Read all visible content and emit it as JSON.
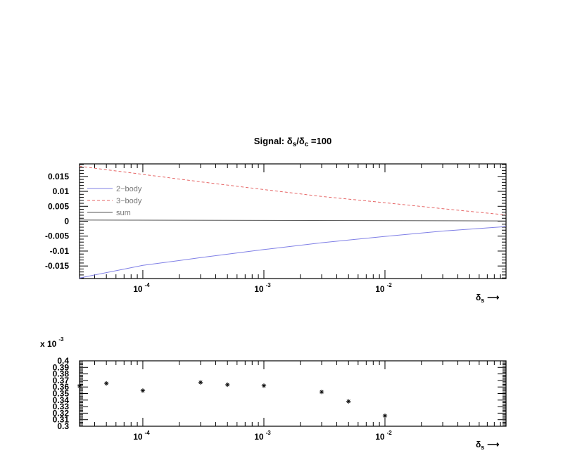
{
  "title": {
    "prefix": "Signal: ",
    "sym": "δ",
    "sub1": "s",
    "slash": "/",
    "sub2": "c",
    "suffix": " =100"
  },
  "xaxis_label": {
    "sym": "δ",
    "sub": "s",
    "arrow": "⟶"
  },
  "x_tick_labels": [
    {
      "base": "10",
      "exp": "-4"
    },
    {
      "base": "10",
      "exp": "-3"
    },
    {
      "base": "10",
      "exp": "-2"
    }
  ],
  "top_y_ticks": [
    "0.015",
    "0.01",
    "0.005",
    "0",
    "-0.005",
    "-0.01",
    "-0.015"
  ],
  "bottom_y_ticks": [
    "0.4",
    "0.39",
    "0.38",
    "0.37",
    "0.36",
    "0.35",
    "0.34",
    "0.33",
    "0.32",
    "0.31",
    "0.3"
  ],
  "bottom_multiplier": {
    "base": "x 10",
    "exp": "-3"
  },
  "colors": {
    "two_body": "#7f7fe6",
    "three_body": "#e66666",
    "sum": "#555555",
    "markers": "#000000"
  },
  "chart_data": [
    {
      "type": "line",
      "title": "Signal: δs/δc =100",
      "xlabel": "δs",
      "x_scale": "log",
      "xlim": [
        3e-05,
        0.1
      ],
      "ylim": [
        -0.0192,
        0.0192
      ],
      "legend": "top-left",
      "series": [
        {
          "name": "2−body",
          "style": "solid",
          "x": [
            3e-05,
            0.0001,
            0.0003,
            0.001,
            0.003,
            0.01,
            0.03,
            0.1
          ],
          "y": [
            -0.019,
            -0.0148,
            -0.0122,
            -0.0095,
            -0.0072,
            -0.0051,
            -0.0033,
            -0.0018
          ]
        },
        {
          "name": "3−body",
          "style": "dashed",
          "x": [
            3e-05,
            0.0001,
            0.0003,
            0.001,
            0.003,
            0.01,
            0.03,
            0.1
          ],
          "y": [
            0.0184,
            0.0157,
            0.0132,
            0.0106,
            0.0083,
            0.0062,
            0.0042,
            0.0021
          ]
        },
        {
          "name": "sum",
          "style": "solid",
          "x": [
            3e-05,
            0.1
          ],
          "y": [
            0.00037,
            0.0001
          ]
        }
      ]
    },
    {
      "type": "scatter",
      "xlabel": "δs",
      "x_scale": "log",
      "xlim": [
        3e-05,
        0.1
      ],
      "ylim": [
        0.3,
        0.4
      ],
      "y_multiplier": "x 10^-3",
      "series": [
        {
          "marker": "*",
          "x": [
            3e-05,
            5e-05,
            0.0001,
            0.0003,
            0.0005,
            0.001,
            0.003,
            0.005,
            0.01
          ],
          "y": [
            0.3615,
            0.3655,
            0.3545,
            0.367,
            0.3635,
            0.362,
            0.3525,
            0.338,
            0.316
          ]
        }
      ]
    }
  ]
}
